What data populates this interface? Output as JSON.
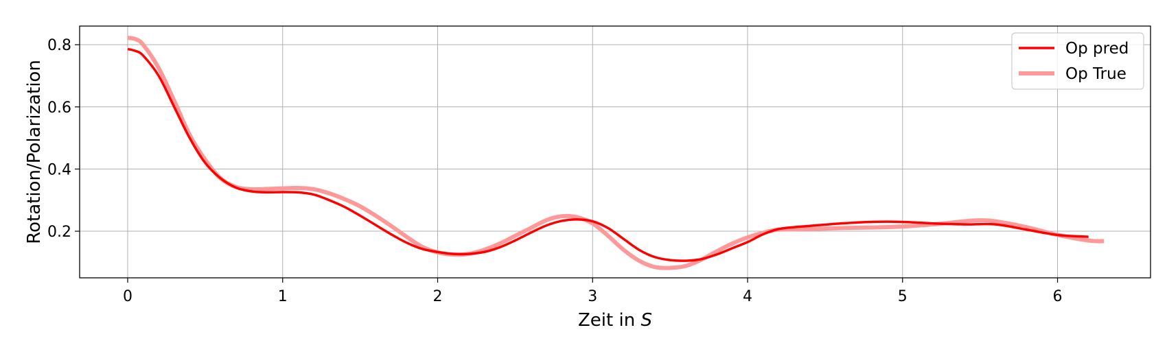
{
  "chart_data": {
    "type": "line",
    "title": "",
    "xlabel": "Zeit in",
    "xlabel_var": "S",
    "ylabel": "Rotation/Polarization",
    "xlim": [
      -0.31,
      6.6
    ],
    "ylim": [
      0.05,
      0.86
    ],
    "xticks": [
      0,
      1,
      2,
      3,
      4,
      5,
      6
    ],
    "yticks": [
      0.2,
      0.4,
      0.6,
      0.8
    ],
    "xtick_labels": [
      "0",
      "1",
      "2",
      "3",
      "4",
      "5",
      "6"
    ],
    "ytick_labels": [
      "0.2",
      "0.4",
      "0.6",
      "0.8"
    ],
    "grid": true,
    "legend_position": "top-right",
    "series": [
      {
        "name": "Op pred",
        "color": "#ff0000",
        "x": [
          0,
          0.05,
          0.1,
          0.2,
          0.3,
          0.4,
          0.5,
          0.6,
          0.7,
          0.8,
          0.9,
          1.0,
          1.1,
          1.2,
          1.3,
          1.4,
          1.5,
          1.6,
          1.7,
          1.8,
          1.9,
          2.0,
          2.1,
          2.2,
          2.3,
          2.4,
          2.5,
          2.6,
          2.7,
          2.8,
          2.9,
          3.0,
          3.1,
          3.2,
          3.3,
          3.4,
          3.5,
          3.6,
          3.7,
          3.8,
          3.9,
          4.0,
          4.1,
          4.2,
          4.3,
          4.4,
          4.6,
          4.8,
          5.0,
          5.2,
          5.4,
          5.6,
          5.8,
          6.0,
          6.2
        ],
        "y": [
          0.786,
          0.78,
          0.765,
          0.7,
          0.6,
          0.5,
          0.42,
          0.37,
          0.34,
          0.328,
          0.325,
          0.326,
          0.325,
          0.318,
          0.3,
          0.278,
          0.25,
          0.22,
          0.19,
          0.163,
          0.143,
          0.133,
          0.127,
          0.127,
          0.133,
          0.148,
          0.17,
          0.195,
          0.218,
          0.233,
          0.238,
          0.232,
          0.21,
          0.175,
          0.14,
          0.117,
          0.107,
          0.105,
          0.11,
          0.125,
          0.145,
          0.165,
          0.19,
          0.207,
          0.213,
          0.217,
          0.225,
          0.23,
          0.23,
          0.225,
          0.222,
          0.222,
          0.205,
          0.188,
          0.182
        ]
      },
      {
        "name": "Op True",
        "color": "#ff9999",
        "x": [
          0,
          0.05,
          0.1,
          0.2,
          0.3,
          0.4,
          0.5,
          0.6,
          0.7,
          0.8,
          0.9,
          1.0,
          1.1,
          1.2,
          1.3,
          1.4,
          1.5,
          1.6,
          1.7,
          1.8,
          1.9,
          2.0,
          2.1,
          2.2,
          2.3,
          2.4,
          2.5,
          2.6,
          2.7,
          2.8,
          2.9,
          3.0,
          3.1,
          3.2,
          3.3,
          3.4,
          3.5,
          3.6,
          3.7,
          3.8,
          3.9,
          4.0,
          4.1,
          4.2,
          4.4,
          4.6,
          4.8,
          5.0,
          5.2,
          5.4,
          5.5,
          5.6,
          5.8,
          6.0,
          6.2,
          6.3
        ],
        "y": [
          0.822,
          0.818,
          0.8,
          0.725,
          0.62,
          0.51,
          0.43,
          0.37,
          0.342,
          0.335,
          0.336,
          0.338,
          0.339,
          0.335,
          0.322,
          0.303,
          0.28,
          0.25,
          0.217,
          0.182,
          0.15,
          0.132,
          0.125,
          0.127,
          0.14,
          0.16,
          0.185,
          0.21,
          0.235,
          0.248,
          0.245,
          0.225,
          0.185,
          0.14,
          0.105,
          0.085,
          0.082,
          0.088,
          0.108,
          0.135,
          0.16,
          0.18,
          0.195,
          0.205,
          0.207,
          0.21,
          0.212,
          0.215,
          0.222,
          0.232,
          0.235,
          0.232,
          0.213,
          0.188,
          0.17,
          0.168
        ]
      }
    ]
  }
}
